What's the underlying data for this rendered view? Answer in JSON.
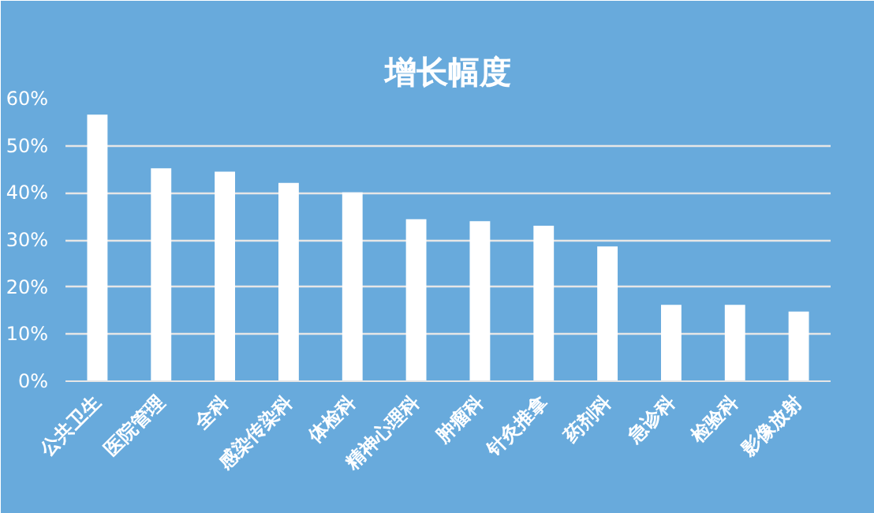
{
  "chart_data": {
    "type": "bar",
    "title": "增长幅度",
    "categories": [
      "公共卫生",
      "医院管理",
      "全科",
      "感染传染科",
      "体检科",
      "精神心理科",
      "肿瘤科",
      "针灸推拿",
      "药剂科",
      "急诊科",
      "检验科",
      "影像放射"
    ],
    "values": [
      56.6,
      45.2,
      44.5,
      42.1,
      40.1,
      34.4,
      34.0,
      33.0,
      28.6,
      16.2,
      16.2,
      14.8
    ],
    "color": "#ffffff",
    "ylim": [
      0,
      60
    ],
    "yticks": [
      {
        "value": 0,
        "label": "0%"
      },
      {
        "value": 10,
        "label": "10%"
      },
      {
        "value": 20,
        "label": "20%"
      },
      {
        "value": 30,
        "label": "30%"
      },
      {
        "value": 40,
        "label": "40%"
      },
      {
        "value": 50,
        "label": "50%"
      },
      {
        "value": 60,
        "label": "60%"
      }
    ],
    "grid": "y"
  }
}
